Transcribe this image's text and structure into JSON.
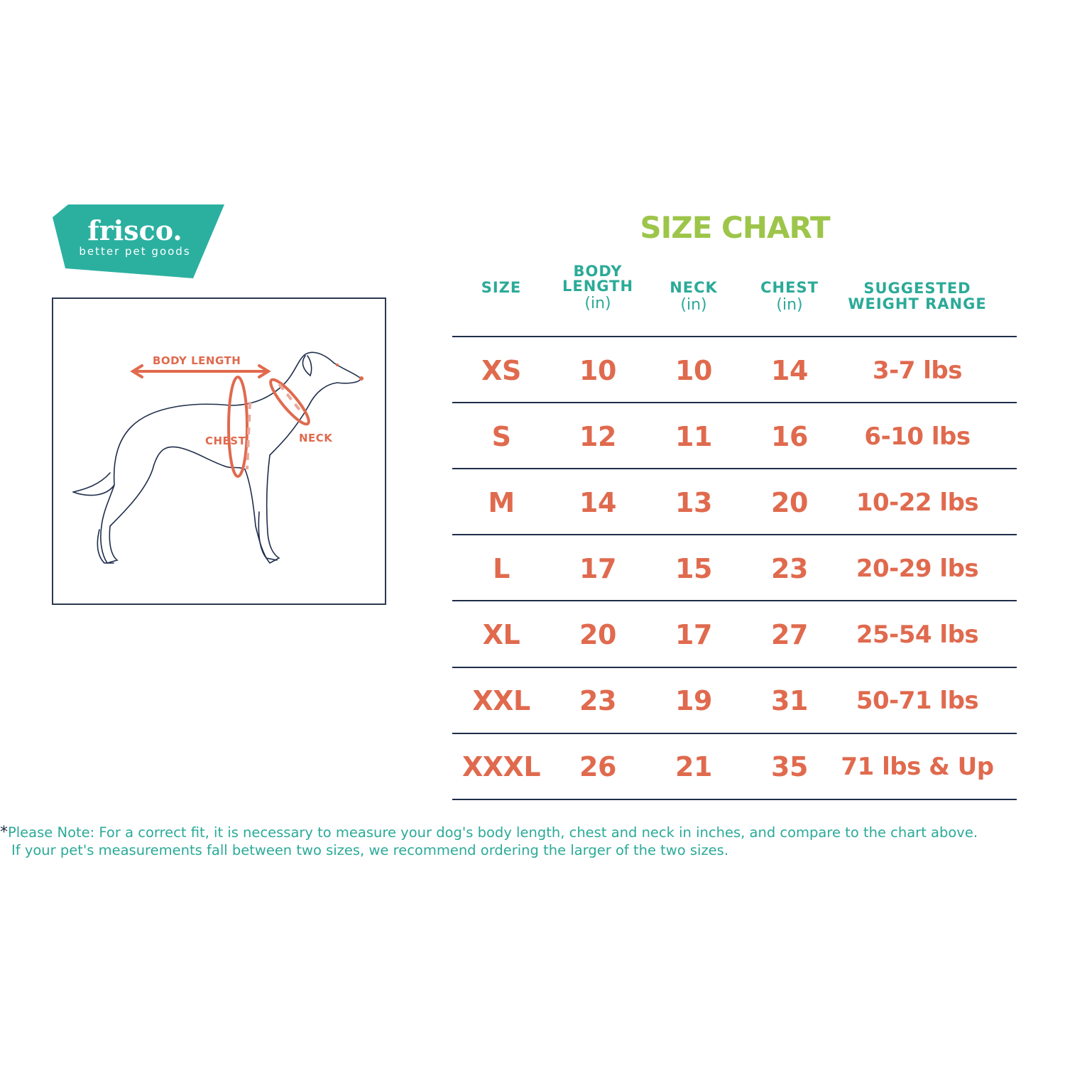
{
  "logo": {
    "brand": "frisco.",
    "tagline": "better pet goods",
    "color": "#2bb0a0"
  },
  "diagram": {
    "labels": {
      "body_length": "BODY LENGTH",
      "chest": "CHEST",
      "neck": "NECK"
    },
    "accent_color": "#e06a4e"
  },
  "title": "SIZE CHART",
  "table": {
    "headers": [
      {
        "label": "SIZE",
        "unit": ""
      },
      {
        "label": "BODY LENGTH",
        "line1": "BODY",
        "line2": "LENGTH",
        "unit": "(in)"
      },
      {
        "label": "NECK",
        "unit": "(in)"
      },
      {
        "label": "CHEST",
        "unit": "(in)"
      },
      {
        "label": "SUGGESTED WEIGHT RANGE",
        "line1": "SUGGESTED",
        "line2": "WEIGHT RANGE",
        "unit": ""
      }
    ],
    "rows": [
      [
        "XS",
        "10",
        "10",
        "14",
        "3-7 lbs"
      ],
      [
        "S",
        "12",
        "11",
        "16",
        "6-10 lbs"
      ],
      [
        "M",
        "14",
        "13",
        "20",
        "10-22 lbs"
      ],
      [
        "L",
        "17",
        "15",
        "23",
        "20-29 lbs"
      ],
      [
        "XL",
        "20",
        "17",
        "27",
        "25-54 lbs"
      ],
      [
        "XXL",
        "23",
        "19",
        "31",
        "50-71 lbs"
      ],
      [
        "XXXL",
        "26",
        "21",
        "35",
        "71 lbs & Up"
      ]
    ]
  },
  "note": {
    "star": "*",
    "line1": "Please Note: For a correct fit, it is necessary to measure your dog's body length, chest and neck in inches, and compare to the chart above.",
    "line2": "If your pet's measurements fall between two sizes, we recommend ordering the larger of the two sizes."
  },
  "colors": {
    "header_teal": "#2baa98",
    "title_green": "#9dc54a",
    "value_orange": "#e06a4e",
    "rule_navy": "#1f2d4a"
  }
}
